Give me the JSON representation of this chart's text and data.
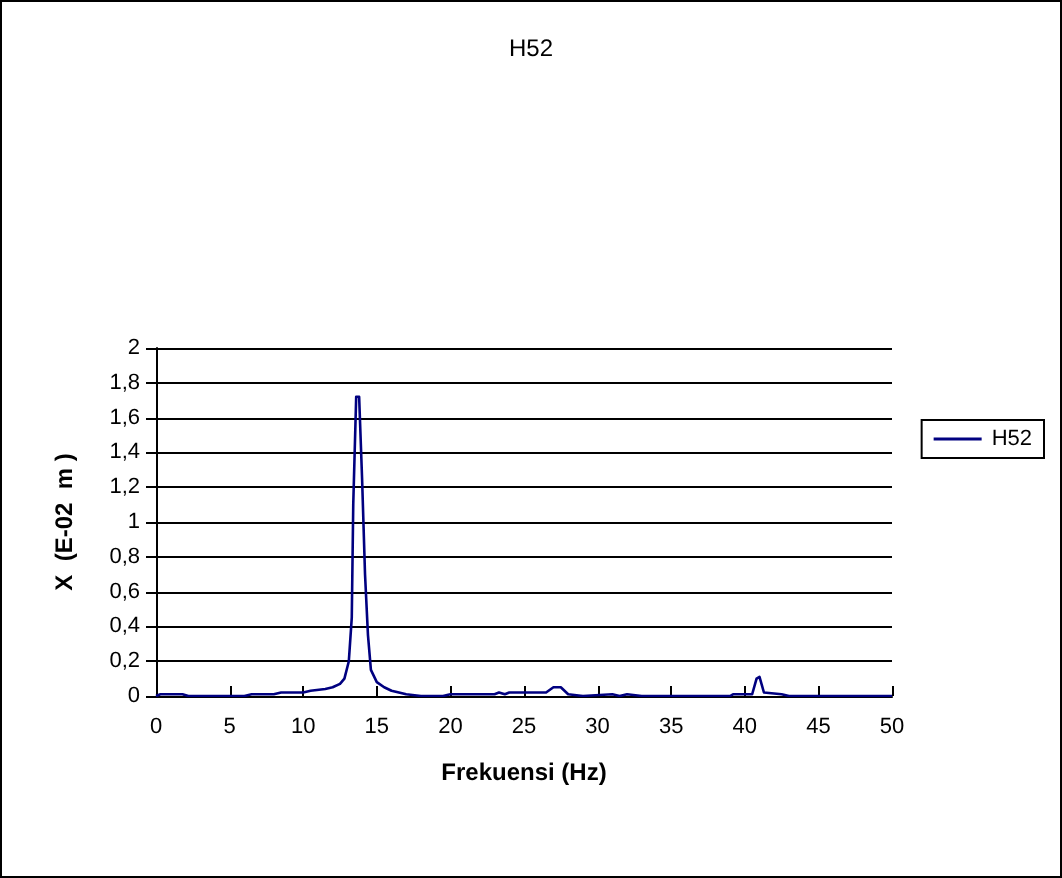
{
  "chart_data": {
    "type": "line",
    "title": "H52",
    "xlabel": "Frekuensi (Hz)",
    "ylabel": "X  (E-02  m )",
    "xlim": [
      0,
      50
    ],
    "xticks": [
      0,
      5,
      10,
      15,
      20,
      25,
      30,
      35,
      40,
      45,
      50
    ],
    "ylim": [
      0,
      2
    ],
    "yticks": [
      {
        "value": 0,
        "label": "0"
      },
      {
        "value": 0.2,
        "label": "0,2"
      },
      {
        "value": 0.4,
        "label": "0,4"
      },
      {
        "value": 0.6,
        "label": "0,6"
      },
      {
        "value": 0.8,
        "label": "0,8"
      },
      {
        "value": 1,
        "label": "1"
      },
      {
        "value": 1.2,
        "label": "1,2"
      },
      {
        "value": 1.4,
        "label": "1,4"
      },
      {
        "value": 1.6,
        "label": "1,6"
      },
      {
        "value": 1.8,
        "label": "1,8"
      },
      {
        "value": 2,
        "label": "2"
      }
    ],
    "grid": "y",
    "legend": "right",
    "marker": "none",
    "series": [
      {
        "name": "H52",
        "color": "#000080",
        "x": [
          0,
          0.3,
          1,
          1.8,
          2.2,
          4,
          6,
          6.5,
          8,
          8.5,
          10,
          10.5,
          11.5,
          12,
          12.5,
          12.8,
          13.1,
          13.3,
          13.4,
          13.6,
          13.8,
          14,
          14.2,
          14.4,
          14.6,
          15,
          15.5,
          16,
          17,
          18,
          19.5,
          20,
          23,
          23.3,
          23.7,
          24,
          26.5,
          27,
          27.5,
          28,
          29,
          31,
          31.5,
          32,
          33,
          39,
          39.2,
          40.5,
          40.8,
          41,
          41.3,
          42.5,
          43,
          50
        ],
        "values": [
          0,
          0.01,
          0.01,
          0.01,
          0,
          0,
          0,
          0.01,
          0.01,
          0.02,
          0.02,
          0.03,
          0.04,
          0.05,
          0.07,
          0.1,
          0.2,
          0.45,
          1.1,
          1.72,
          1.72,
          1.25,
          0.7,
          0.35,
          0.15,
          0.08,
          0.05,
          0.03,
          0.01,
          0,
          0,
          0.01,
          0.01,
          0.02,
          0.01,
          0.02,
          0.02,
          0.05,
          0.05,
          0.01,
          0,
          0.01,
          0,
          0.01,
          0,
          0,
          0.01,
          0.01,
          0.1,
          0.11,
          0.02,
          0.01,
          0,
          0
        ]
      }
    ]
  }
}
